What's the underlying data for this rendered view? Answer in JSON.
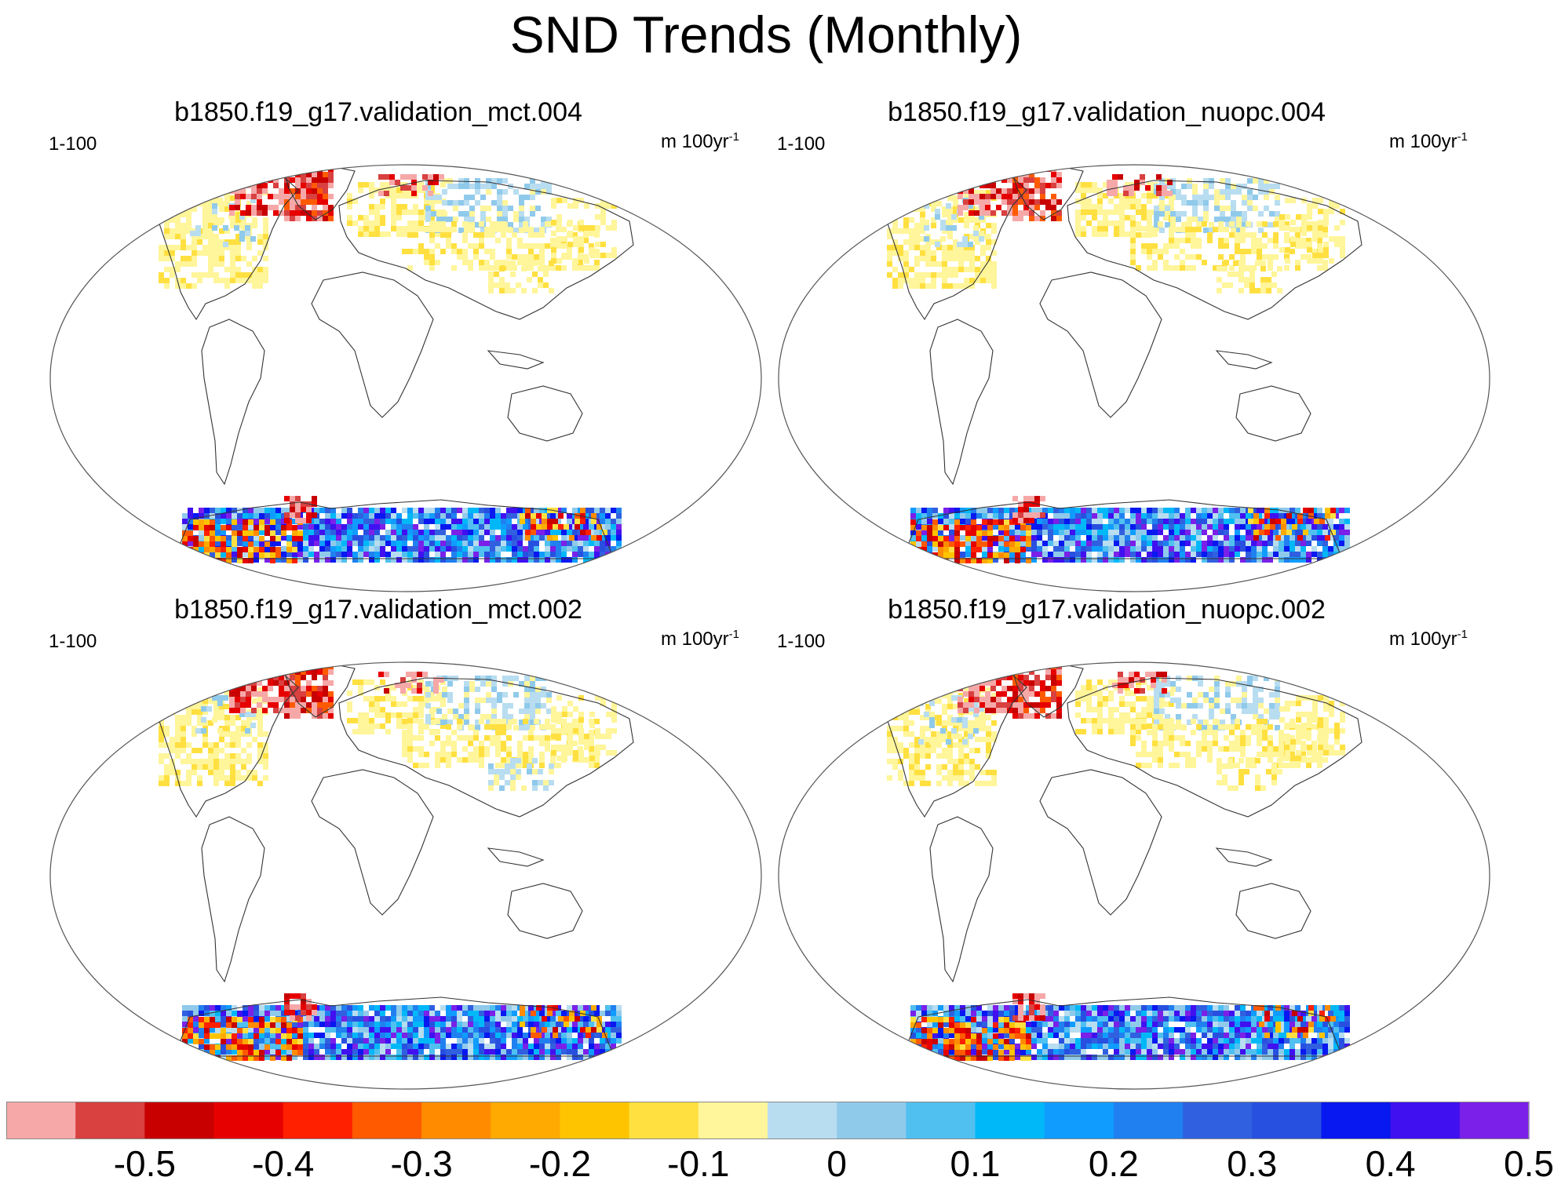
{
  "title": "SND Trends (Monthly)",
  "panels": [
    {
      "title": "b1850.f19_g17.validation_mct.004",
      "left_label": "1-100",
      "units_base": "m 100yr",
      "units_exp": "-1"
    },
    {
      "title": "b1850.f19_g17.validation_nuopc.004",
      "left_label": "1-100",
      "units_base": "m 100yr",
      "units_exp": "-1"
    },
    {
      "title": "b1850.f19_g17.validation_mct.002",
      "left_label": "1-100",
      "units_base": "m 100yr",
      "units_exp": "-1"
    },
    {
      "title": "b1850.f19_g17.validation_nuopc.002",
      "left_label": "1-100",
      "units_base": "m 100yr",
      "units_exp": "-1"
    }
  ],
  "colorbar": {
    "colors": [
      "#f6a8a8",
      "#d94040",
      "#c80000",
      "#e60000",
      "#ff2000",
      "#ff5a00",
      "#ff8c00",
      "#ffaa00",
      "#ffc400",
      "#ffe040",
      "#fff59a",
      "#b8ddf0",
      "#90caeb",
      "#50c0f0",
      "#00b8f8",
      "#109cff",
      "#2080f0",
      "#3060e0",
      "#2850e0",
      "#0818f0",
      "#4010f0",
      "#7a20e8"
    ],
    "labels": [
      "-0.5",
      "-0.4",
      "-0.3",
      "-0.2",
      "-0.1",
      "0",
      "0.1",
      "0.2",
      "0.3",
      "0.4",
      "0.5"
    ]
  },
  "chart_data": {
    "type": "heatmap",
    "title": "SND Trends (Monthly)",
    "variable": "SND",
    "units": "m 100yr-1",
    "period": "1-100",
    "projection": "Robinson (global)",
    "color_levels": [
      -0.5,
      -0.45,
      -0.4,
      -0.35,
      -0.3,
      -0.25,
      -0.2,
      -0.15,
      -0.1,
      -0.05,
      0,
      0.05,
      0.1,
      0.15,
      0.2,
      0.25,
      0.3,
      0.35,
      0.4,
      0.45,
      0.5
    ],
    "panels": [
      {
        "case": "b1850.f19_g17.validation_mct.004"
      },
      {
        "case": "b1850.f19_g17.validation_nuopc.004"
      },
      {
        "case": "b1850.f19_g17.validation_mct.002"
      },
      {
        "case": "b1850.f19_g17.validation_nuopc.002"
      }
    ]
  }
}
